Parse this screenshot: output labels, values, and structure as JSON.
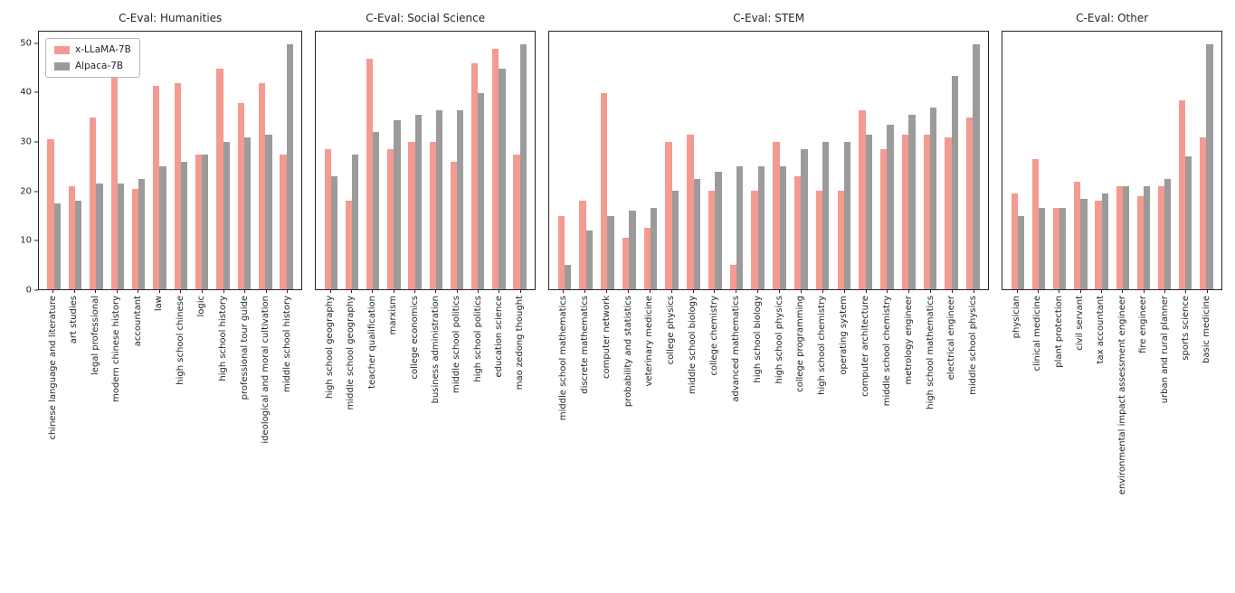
{
  "figure_title": "",
  "legend": {
    "position": "upper-left-first-subplot",
    "series": [
      {
        "label": "x-LLaMA-7B",
        "color": "#f59a90"
      },
      {
        "label": "Alpaca-7B",
        "color": "#9b9b9b"
      }
    ]
  },
  "axis": {
    "ymin": 0,
    "ymax": 52.5,
    "yticks": [
      0,
      10,
      20,
      30,
      40,
      50
    ],
    "grid": false
  },
  "chart_data": [
    {
      "type": "bar",
      "title": "C-Eval: Humanities",
      "xlabel": "",
      "ylabel": "",
      "ylim": [
        0,
        52.5
      ],
      "categories": [
        "chinese language and literature",
        "art studies",
        "legal professional",
        "modern chinese history",
        "accountant",
        "law",
        "high school chinese",
        "logic",
        "high school history",
        "professional tour guide",
        "ideological and moral cultivation",
        "middle school history"
      ],
      "series": [
        {
          "name": "x-LLaMA-7B",
          "values": [
            30.5,
            21,
            35,
            43.5,
            20.5,
            41.5,
            42,
            27.5,
            45,
            38,
            42,
            27.5
          ]
        },
        {
          "name": "Alpaca-7B",
          "values": [
            17.5,
            18,
            21.5,
            21.5,
            22.5,
            25,
            26,
            27.5,
            30,
            31,
            31.5,
            50
          ]
        }
      ]
    },
    {
      "type": "bar",
      "title": "C-Eval: Social Science",
      "xlabel": "",
      "ylabel": "",
      "ylim": [
        0,
        52.5
      ],
      "categories": [
        "high school geography",
        "middle school geography",
        "teacher qualification",
        "marxism",
        "college economics",
        "business administration",
        "middle school politics",
        "high school politics",
        "education science",
        "mao zedong thought"
      ],
      "series": [
        {
          "name": "x-LLaMA-7B",
          "values": [
            28.5,
            18,
            47,
            28.5,
            30,
            30,
            26,
            46,
            49,
            27.5
          ]
        },
        {
          "name": "Alpaca-7B",
          "values": [
            23,
            27.5,
            32,
            34.5,
            35.5,
            36.5,
            36.5,
            40,
            45,
            50
          ]
        }
      ]
    },
    {
      "type": "bar",
      "title": "C-Eval: STEM",
      "xlabel": "",
      "ylabel": "",
      "ylim": [
        0,
        52.5
      ],
      "categories": [
        "middle school mathematics",
        "discrete mathematics",
        "computer network",
        "probability and statistics",
        "veterinary medicine",
        "college physics",
        "middle school biology",
        "college chemistry",
        "advanced mathematics",
        "high school biology",
        "high school physics",
        "college programming",
        "high school chemistry",
        "operating system",
        "computer architecture",
        "middle school chemistry",
        "metrology engineer",
        "high school mathematics",
        "electrical engineer",
        "middle school physics"
      ],
      "series": [
        {
          "name": "x-LLaMA-7B",
          "values": [
            15,
            18,
            40,
            10.5,
            12.5,
            30,
            31.5,
            20,
            5,
            20,
            30,
            23,
            20,
            20,
            36.5,
            28.5,
            31.5,
            31.5,
            31,
            35
          ]
        },
        {
          "name": "Alpaca-7B",
          "values": [
            5,
            12,
            15,
            16,
            16.5,
            20,
            22.5,
            24,
            25,
            25,
            25,
            28.5,
            30,
            30,
            31.5,
            33.5,
            35.5,
            37,
            43.5,
            50
          ]
        }
      ]
    },
    {
      "type": "bar",
      "title": "C-Eval: Other",
      "xlabel": "",
      "ylabel": "",
      "ylim": [
        0,
        52.5
      ],
      "categories": [
        "physician",
        "clinical medicine",
        "plant protection",
        "civil servant",
        "tax accountant",
        "environmental impact assessment engineer",
        "fire engineer",
        "urban and rural planner",
        "sports science",
        "basic medicine"
      ],
      "series": [
        {
          "name": "x-LLaMA-7B",
          "values": [
            19.5,
            26.5,
            16.5,
            22,
            18,
            21,
            19,
            21,
            38.5,
            31
          ]
        },
        {
          "name": "Alpaca-7B",
          "values": [
            15,
            16.5,
            16.5,
            18.5,
            19.5,
            21,
            21,
            22.5,
            27,
            50
          ]
        }
      ]
    }
  ]
}
